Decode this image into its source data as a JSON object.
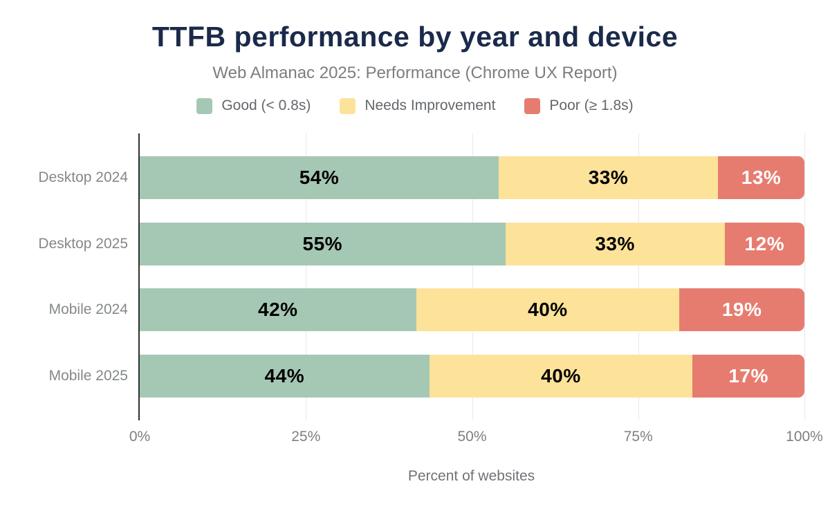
{
  "chart_data": {
    "type": "bar",
    "orientation": "horizontal",
    "stacked": true,
    "title": "TTFB performance by year and device",
    "subtitle": "Web Almanac 2025: Performance (Chrome UX Report)",
    "xlabel": "Percent of websites",
    "value_suffix": "%",
    "categories": [
      "Desktop 2024",
      "Desktop 2025",
      "Mobile 2024",
      "Mobile 2025"
    ],
    "series": [
      {
        "name": "Good (< 0.8s)",
        "color": "#a5c8b4",
        "label_color": "#000000",
        "values": [
          54,
          55,
          42,
          44
        ]
      },
      {
        "name": "Needs Improvement",
        "color": "#fde299",
        "label_color": "#000000",
        "values": [
          33,
          33,
          40,
          40
        ]
      },
      {
        "name": "Poor (≥ 1.8s)",
        "color": "#e67c70",
        "label_color": "#ffffff",
        "values": [
          13,
          12,
          19,
          17
        ]
      }
    ],
    "xlim": [
      0,
      100
    ],
    "x_ticks": [
      {
        "label": "0%",
        "pos": 0
      },
      {
        "label": "25%",
        "pos": 25
      },
      {
        "label": "50%",
        "pos": 50
      },
      {
        "label": "75%",
        "pos": 75
      },
      {
        "label": "100%",
        "pos": 100
      }
    ],
    "grid": "vertical",
    "legend_position": "top",
    "colors": {
      "title": "#1b2a4a",
      "axis_line": "#2f2f2f",
      "gridline": "#e9e9e9",
      "muted_text": "#7c8084",
      "background": "#ffffff"
    }
  }
}
